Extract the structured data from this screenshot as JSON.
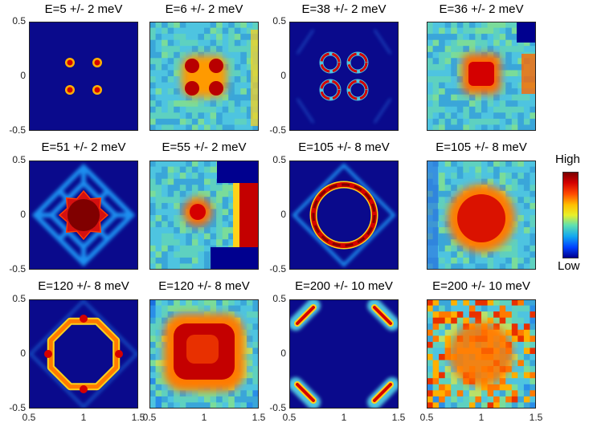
{
  "chart_data": [
    {
      "type": "heatmap",
      "title": "E=5 +/- 2 meV",
      "kind": "theory",
      "pattern": "points",
      "xlim": [
        0.5,
        1.5
      ],
      "ylim": [
        -0.5,
        0.5
      ],
      "yticks": [
        "0.5",
        "0",
        "-0.5"
      ],
      "xticks": []
    },
    {
      "type": "heatmap",
      "title": "E=6 +/- 2 meV",
      "kind": "experiment",
      "pattern": "four-spots",
      "xlim": [
        0.5,
        1.5
      ],
      "ylim": [
        -0.5,
        0.5
      ],
      "xticks": []
    },
    {
      "type": "heatmap",
      "title": "E=38 +/- 2 meV",
      "kind": "theory",
      "pattern": "rings",
      "xlim": [
        0.5,
        1.5
      ],
      "ylim": [
        -0.5,
        0.5
      ],
      "yticks": [
        "0.5",
        "0",
        "-0.5"
      ],
      "xticks": []
    },
    {
      "type": "heatmap",
      "title": "E=36 +/- 2 meV",
      "kind": "experiment",
      "pattern": "square",
      "xlim": [
        0.5,
        1.5
      ],
      "ylim": [
        -0.5,
        0.5
      ],
      "xticks": []
    },
    {
      "type": "heatmap",
      "title": "E=51 +/- 2 meV",
      "kind": "theory",
      "pattern": "star",
      "xlim": [
        0.5,
        1.5
      ],
      "ylim": [
        -0.5,
        0.5
      ],
      "yticks": [
        "0.5",
        "0",
        "-0.5"
      ],
      "xticks": []
    },
    {
      "type": "heatmap",
      "title": "E=55 +/- 2 meV",
      "kind": "experiment",
      "pattern": "blob-edge",
      "xlim": [
        0.5,
        1.5
      ],
      "ylim": [
        -0.5,
        0.5
      ],
      "xticks": []
    },
    {
      "type": "heatmap",
      "title": "E=105 +/- 8 meV",
      "kind": "theory",
      "pattern": "ring",
      "xlim": [
        0.5,
        1.5
      ],
      "ylim": [
        -0.5,
        0.5
      ],
      "yticks": [
        "0.5",
        "0",
        "-0.5"
      ],
      "xticks": []
    },
    {
      "type": "heatmap",
      "title": "E=105 +/- 8 meV",
      "kind": "experiment",
      "pattern": "broad-blob",
      "xlim": [
        0.5,
        1.5
      ],
      "ylim": [
        -0.5,
        0.5
      ],
      "xticks": []
    },
    {
      "type": "heatmap",
      "title": "E=120 +/- 8 meV",
      "kind": "theory",
      "pattern": "octagon",
      "xlim": [
        0.5,
        1.5
      ],
      "ylim": [
        -0.5,
        0.5
      ],
      "yticks": [
        "0.5",
        "0",
        "-0.5"
      ],
      "xticks": [
        "0.5",
        "1",
        "1.5"
      ]
    },
    {
      "type": "heatmap",
      "title": "E=120 +/- 8 meV",
      "kind": "experiment",
      "pattern": "large-blob",
      "xlim": [
        0.5,
        1.5
      ],
      "ylim": [
        -0.5,
        0.5
      ],
      "xticks": [
        "0.5",
        "1",
        "1.5"
      ]
    },
    {
      "type": "heatmap",
      "title": "E=200 +/- 10 meV",
      "kind": "theory",
      "pattern": "corners",
      "xlim": [
        0.5,
        1.5
      ],
      "ylim": [
        -0.5,
        0.5
      ],
      "yticks": [
        "0.5",
        "0",
        "-0.5"
      ],
      "xticks": [
        "0.5",
        "1",
        "1.5"
      ]
    },
    {
      "type": "heatmap",
      "title": "E=200 +/- 10 meV",
      "kind": "experiment",
      "pattern": "diffuse",
      "xlim": [
        0.5,
        1.5
      ],
      "ylim": [
        -0.5,
        0.5
      ],
      "xticks": [
        "0.5",
        "1",
        "1.5"
      ]
    }
  ],
  "colorbar": {
    "high_label": "High",
    "low_label": "Low",
    "colors": [
      "#7a0000",
      "#ff4a00",
      "#e8f02a",
      "#12a8f0",
      "#00008f"
    ]
  },
  "colors": {
    "background_theory": "#0a0a8c",
    "background_exp": "#3aa6d9",
    "hot": "#d40000",
    "dark_hot": "#800000",
    "warm": "#ffd21a",
    "mid": "#4ec4e0",
    "cool": "#1a6fe0"
  }
}
